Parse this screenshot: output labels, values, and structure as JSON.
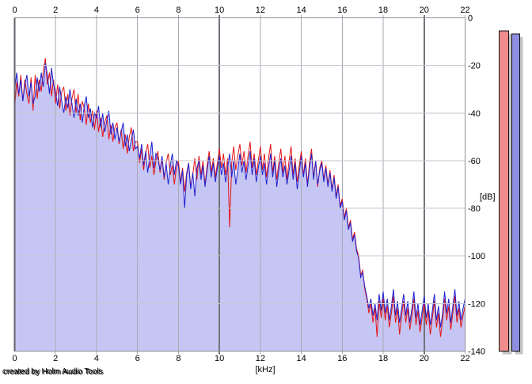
{
  "credit_text": "created by Holm Audio Tools",
  "colors": {
    "plot_bg": "#ffffff",
    "grid_minor": "#a9a9b4",
    "grid_major": "#73737c",
    "grid_horizontal": "#c6c6d2",
    "frame": "#8f8f98",
    "frame_left": "#62626a",
    "meter_shadow": "#c3c3c3",
    "meter_outline": "#101010",
    "text": "#000000"
  },
  "chart_data": {
    "type": "line",
    "title": "",
    "xlabel": "[kHz]",
    "ylabel": "[dB]",
    "xlim": [
      0,
      22
    ],
    "ylim": [
      -140,
      0
    ],
    "grid": true,
    "legend_position": "none",
    "x_ticks": [
      0,
      2,
      4,
      6,
      8,
      10,
      12,
      14,
      16,
      18,
      20,
      22
    ],
    "x_major_ticks": [
      10,
      20
    ],
    "y_ticks": [
      0,
      -20,
      -40,
      -60,
      -80,
      -100,
      -120,
      -140
    ],
    "x_start_khz": 0,
    "x_step_khz": 0.1,
    "series": [
      {
        "name": "spectrum-red",
        "color": "#e41414",
        "fill": null,
        "values_db": [
          -38,
          -27,
          -33,
          -24,
          -35,
          -26,
          -32,
          -36,
          -25,
          -39,
          -24,
          -34,
          -26,
          -31,
          -22,
          -17,
          -28,
          -23,
          -33,
          -26,
          -36,
          -28,
          -38,
          -31,
          -29,
          -39,
          -32,
          -41,
          -34,
          -30,
          -40,
          -32,
          -43,
          -35,
          -38,
          -45,
          -36,
          -44,
          -39,
          -47,
          -39,
          -48,
          -42,
          -50,
          -44,
          -41,
          -51,
          -45,
          -52,
          -46,
          -44,
          -53,
          -47,
          -55,
          -49,
          -57,
          -50,
          -46,
          -56,
          -52,
          -52,
          -61,
          -55,
          -64,
          -57,
          -53,
          -63,
          -58,
          -66,
          -60,
          -56,
          -65,
          -59,
          -68,
          -61,
          -57,
          -66,
          -62,
          -70,
          -63,
          -60,
          -69,
          -63,
          -73,
          -65,
          -61,
          -71,
          -66,
          -59,
          -68,
          -58,
          -66,
          -60,
          -70,
          -62,
          -56,
          -65,
          -59,
          -67,
          -61,
          -55,
          -63,
          -57,
          -66,
          -59,
          -88,
          -61,
          -54,
          -64,
          -58,
          -53,
          -62,
          -56,
          -65,
          -58,
          -52,
          -63,
          -57,
          -66,
          -60,
          -54,
          -64,
          -57,
          -67,
          -59,
          -53,
          -65,
          -58,
          -68,
          -61,
          -55,
          -65,
          -58,
          -68,
          -60,
          -54,
          -66,
          -59,
          -69,
          -62,
          -56,
          -66,
          -59,
          -70,
          -61,
          -55,
          -67,
          -60,
          -71,
          -63,
          -60,
          -68,
          -62,
          -70,
          -64,
          -72,
          -66,
          -75,
          -70,
          -79,
          -76,
          -84,
          -80,
          -88,
          -85,
          -93,
          -90,
          -97,
          -100,
          -108,
          -106,
          -114,
          -118,
          -124,
          -120,
          -128,
          -122,
          -134,
          -119,
          -126,
          -118,
          -127,
          -121,
          -130,
          -124,
          -117,
          -128,
          -122,
          -133,
          -125,
          -119,
          -128,
          -122,
          -131,
          -125,
          -118,
          -129,
          -123,
          -132,
          -126,
          -120,
          -129,
          -123,
          -133,
          -126,
          -119,
          -130,
          -124,
          -134,
          -127,
          -118,
          -127,
          -121,
          -131,
          -124,
          -117,
          -128,
          -122,
          -130,
          -125,
          -121
        ]
      },
      {
        "name": "spectrum-blue",
        "color": "#2020cf",
        "fill": "#c6c6f4",
        "values_db": [
          -30,
          -23,
          -32,
          -26,
          -35,
          -28,
          -24,
          -33,
          -27,
          -36,
          -33,
          -25,
          -31,
          -23,
          -29,
          -19,
          -24,
          -32,
          -21,
          -28,
          -31,
          -37,
          -29,
          -35,
          -40,
          -33,
          -38,
          -30,
          -36,
          -42,
          -34,
          -41,
          -36,
          -44,
          -37,
          -33,
          -42,
          -38,
          -46,
          -40,
          -42,
          -37,
          -46,
          -40,
          -48,
          -43,
          -39,
          -49,
          -44,
          -51,
          -46,
          -52,
          -48,
          -44,
          -54,
          -49,
          -56,
          -51,
          -47,
          -55,
          -54,
          -59,
          -53,
          -62,
          -56,
          -65,
          -58,
          -52,
          -63,
          -57,
          -59,
          -64,
          -58,
          -67,
          -61,
          -70,
          -62,
          -57,
          -66,
          -60,
          -62,
          -70,
          -64,
          -80,
          -66,
          -61,
          -72,
          -65,
          -75,
          -63,
          -60,
          -68,
          -62,
          -71,
          -64,
          -58,
          -67,
          -61,
          -69,
          -63,
          -58,
          -66,
          -61,
          -69,
          -63,
          -57,
          -67,
          -60,
          -70,
          -64,
          -57,
          -65,
          -60,
          -68,
          -62,
          -56,
          -66,
          -59,
          -69,
          -63,
          -58,
          -66,
          -61,
          -70,
          -63,
          -57,
          -67,
          -60,
          -71,
          -64,
          -59,
          -67,
          -62,
          -70,
          -64,
          -58,
          -68,
          -61,
          -72,
          -65,
          -58,
          -67,
          -61,
          -71,
          -63,
          -57,
          -68,
          -60,
          -70,
          -64,
          -61,
          -69,
          -63,
          -71,
          -65,
          -73,
          -67,
          -76,
          -71,
          -80,
          -77,
          -85,
          -81,
          -89,
          -86,
          -94,
          -91,
          -98,
          -101,
          -109,
          -107,
          -113,
          -117,
          -122,
          -118,
          -125,
          -120,
          -127,
          -116,
          -123,
          -115,
          -124,
          -118,
          -127,
          -121,
          -114,
          -125,
          -119,
          -128,
          -122,
          -116,
          -125,
          -119,
          -128,
          -122,
          -115,
          -126,
          -120,
          -129,
          -123,
          -117,
          -126,
          -120,
          -129,
          -123,
          -116,
          -127,
          -121,
          -130,
          -124,
          -115,
          -124,
          -118,
          -128,
          -121,
          -114,
          -125,
          -119,
          -127,
          -122,
          -118
        ]
      }
    ],
    "level_meters": [
      {
        "name": "red-level-meter",
        "value_db": -5.5,
        "color": "#f18c8c"
      },
      {
        "name": "blue-level-meter",
        "value_db": -6.8,
        "color": "#8d8de1"
      }
    ]
  }
}
